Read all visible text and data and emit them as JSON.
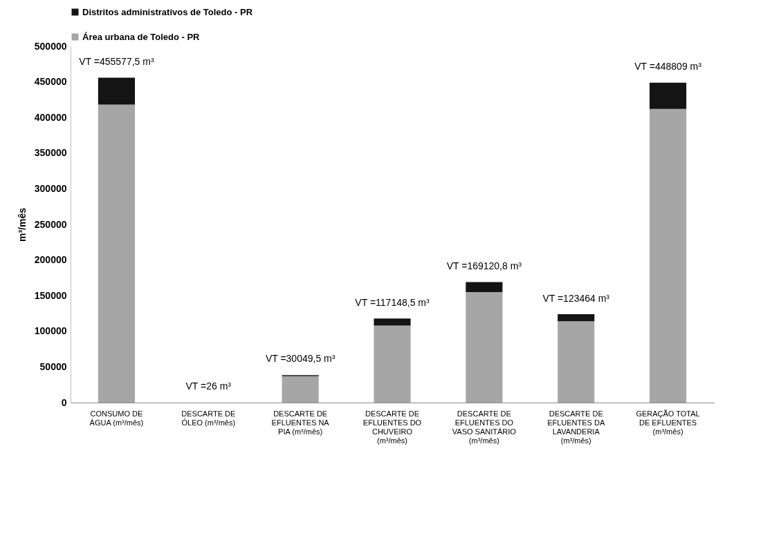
{
  "chart_data": {
    "type": "bar",
    "stacked": true,
    "categories": [
      "CONSUMO DE ÁGUA (m³/mês)",
      "DESCARTE DE ÓLEO (m³/mês)",
      "DESCARTE DE EFLUENTES NA PIA (m³/mês)",
      "DESCARTE DE EFLUENTES DO CHUVEIRO (m³/mês)",
      "DESCARTE DE EFLUENTES DO VASO SANITÁRIO (m³/mês)",
      "DESCARTE DE EFLUENTES DA LAVANDERIA (m³/mês)",
      "GERAÇÃO TOTAL DE EFLUENTES (m³/mês)"
    ],
    "series": [
      {
        "name": "Área urbana de Toledo - PR",
        "color": "#a6a6a6",
        "values": [
          418000,
          26,
          37000,
          108000,
          155000,
          114000,
          412000
        ]
      },
      {
        "name": "Distritos administrativos de Toledo - PR",
        "color": "#141414",
        "values": [
          38000,
          0,
          1500,
          10000,
          14000,
          10000,
          37000
        ]
      }
    ],
    "ylabel": "m³/mês",
    "ylim": [
      0,
      500000
    ],
    "yticks": [
      0,
      50000,
      100000,
      150000,
      200000,
      250000,
      300000,
      350000,
      400000,
      450000,
      500000
    ],
    "grid": false,
    "legend": "top",
    "annotations": [
      {
        "text": "VT =455577,5 m³",
        "x": "CONSUMO DE ÁGUA (m³/mês)",
        "y": 455500
      },
      {
        "text": "VT =26 m³",
        "x": "DESCARTE DE ÓLEO (m³/mês)",
        "y": 26
      },
      {
        "text": "VT =30049,5 m³",
        "x": "DESCARTE DE EFLUENTES NA PIA (m³/mês)",
        "y": 38500
      },
      {
        "text": "VT =117148,5 m³",
        "x": "DESCARTE DE EFLUENTES DO CHUVEIRO (m³/mês)",
        "y": 117100
      },
      {
        "text": "VT =169120,8 m³",
        "x": "DESCARTE DE EFLUENTES DO VASO SANITÁRIO (m³/mês)",
        "y": 169000
      },
      {
        "text": "VT =123464 m³",
        "x": "DESCARTE DE EFLUENTES DA LAVANDERIA (m³/mês)",
        "y": 123500
      },
      {
        "text": "VT =448809 m³",
        "x": "GERAÇÃO TOTAL DE EFLUENTES (m³/mês)",
        "y": 449000
      }
    ]
  }
}
